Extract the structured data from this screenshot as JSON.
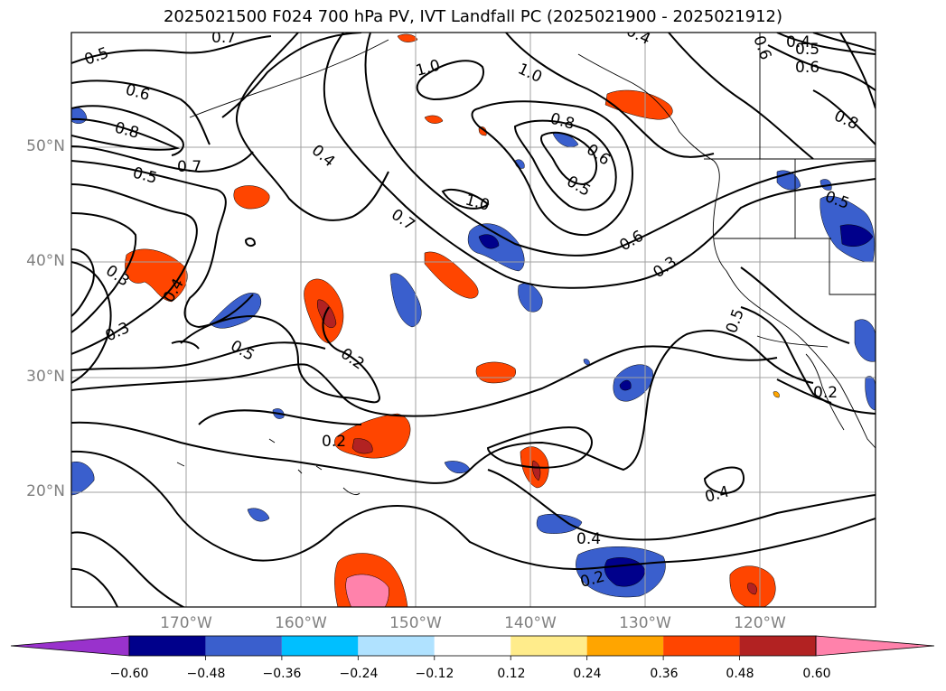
{
  "title": "2025021500 F024 700 hPa PV, IVT Landfall PC (2025021900 - 2025021912)",
  "lat_labels": [
    "50°N",
    "40°N",
    "30°N",
    "20°N"
  ],
  "lon_labels": [
    "170°W",
    "160°W",
    "150°W",
    "140°W",
    "130°W",
    "120°W"
  ],
  "contour_labels": [
    "0.5",
    "0.7",
    "0.6",
    "0.8",
    "0.5",
    "0.7",
    "1.0",
    "1.0",
    "0.8",
    "0.6",
    "0.5",
    "1.0",
    "0.7",
    "0.6",
    "0.3",
    "0.4",
    "0.5",
    "0.4",
    "0.6",
    "0.8",
    "0.3",
    "0.4",
    "0.3",
    "0.5",
    "0.2",
    "0.2",
    "0.4",
    "0.2",
    "0.5",
    "0.4",
    "0.2",
    "0.5",
    "0.4",
    "0.6"
  ],
  "colorbar": {
    "ticks": [
      "−0.60",
      "−0.48",
      "−0.36",
      "−0.24",
      "−0.12",
      "0.12",
      "0.24",
      "0.36",
      "0.48",
      "0.60"
    ],
    "colors": [
      "#9932cc",
      "#00008b",
      "#3a5fcd",
      "#00bfff",
      "#b0e2ff",
      "#ffffff",
      "#ffec8b",
      "#ffa500",
      "#ff4500",
      "#b22222",
      "#ff82ab"
    ]
  }
}
